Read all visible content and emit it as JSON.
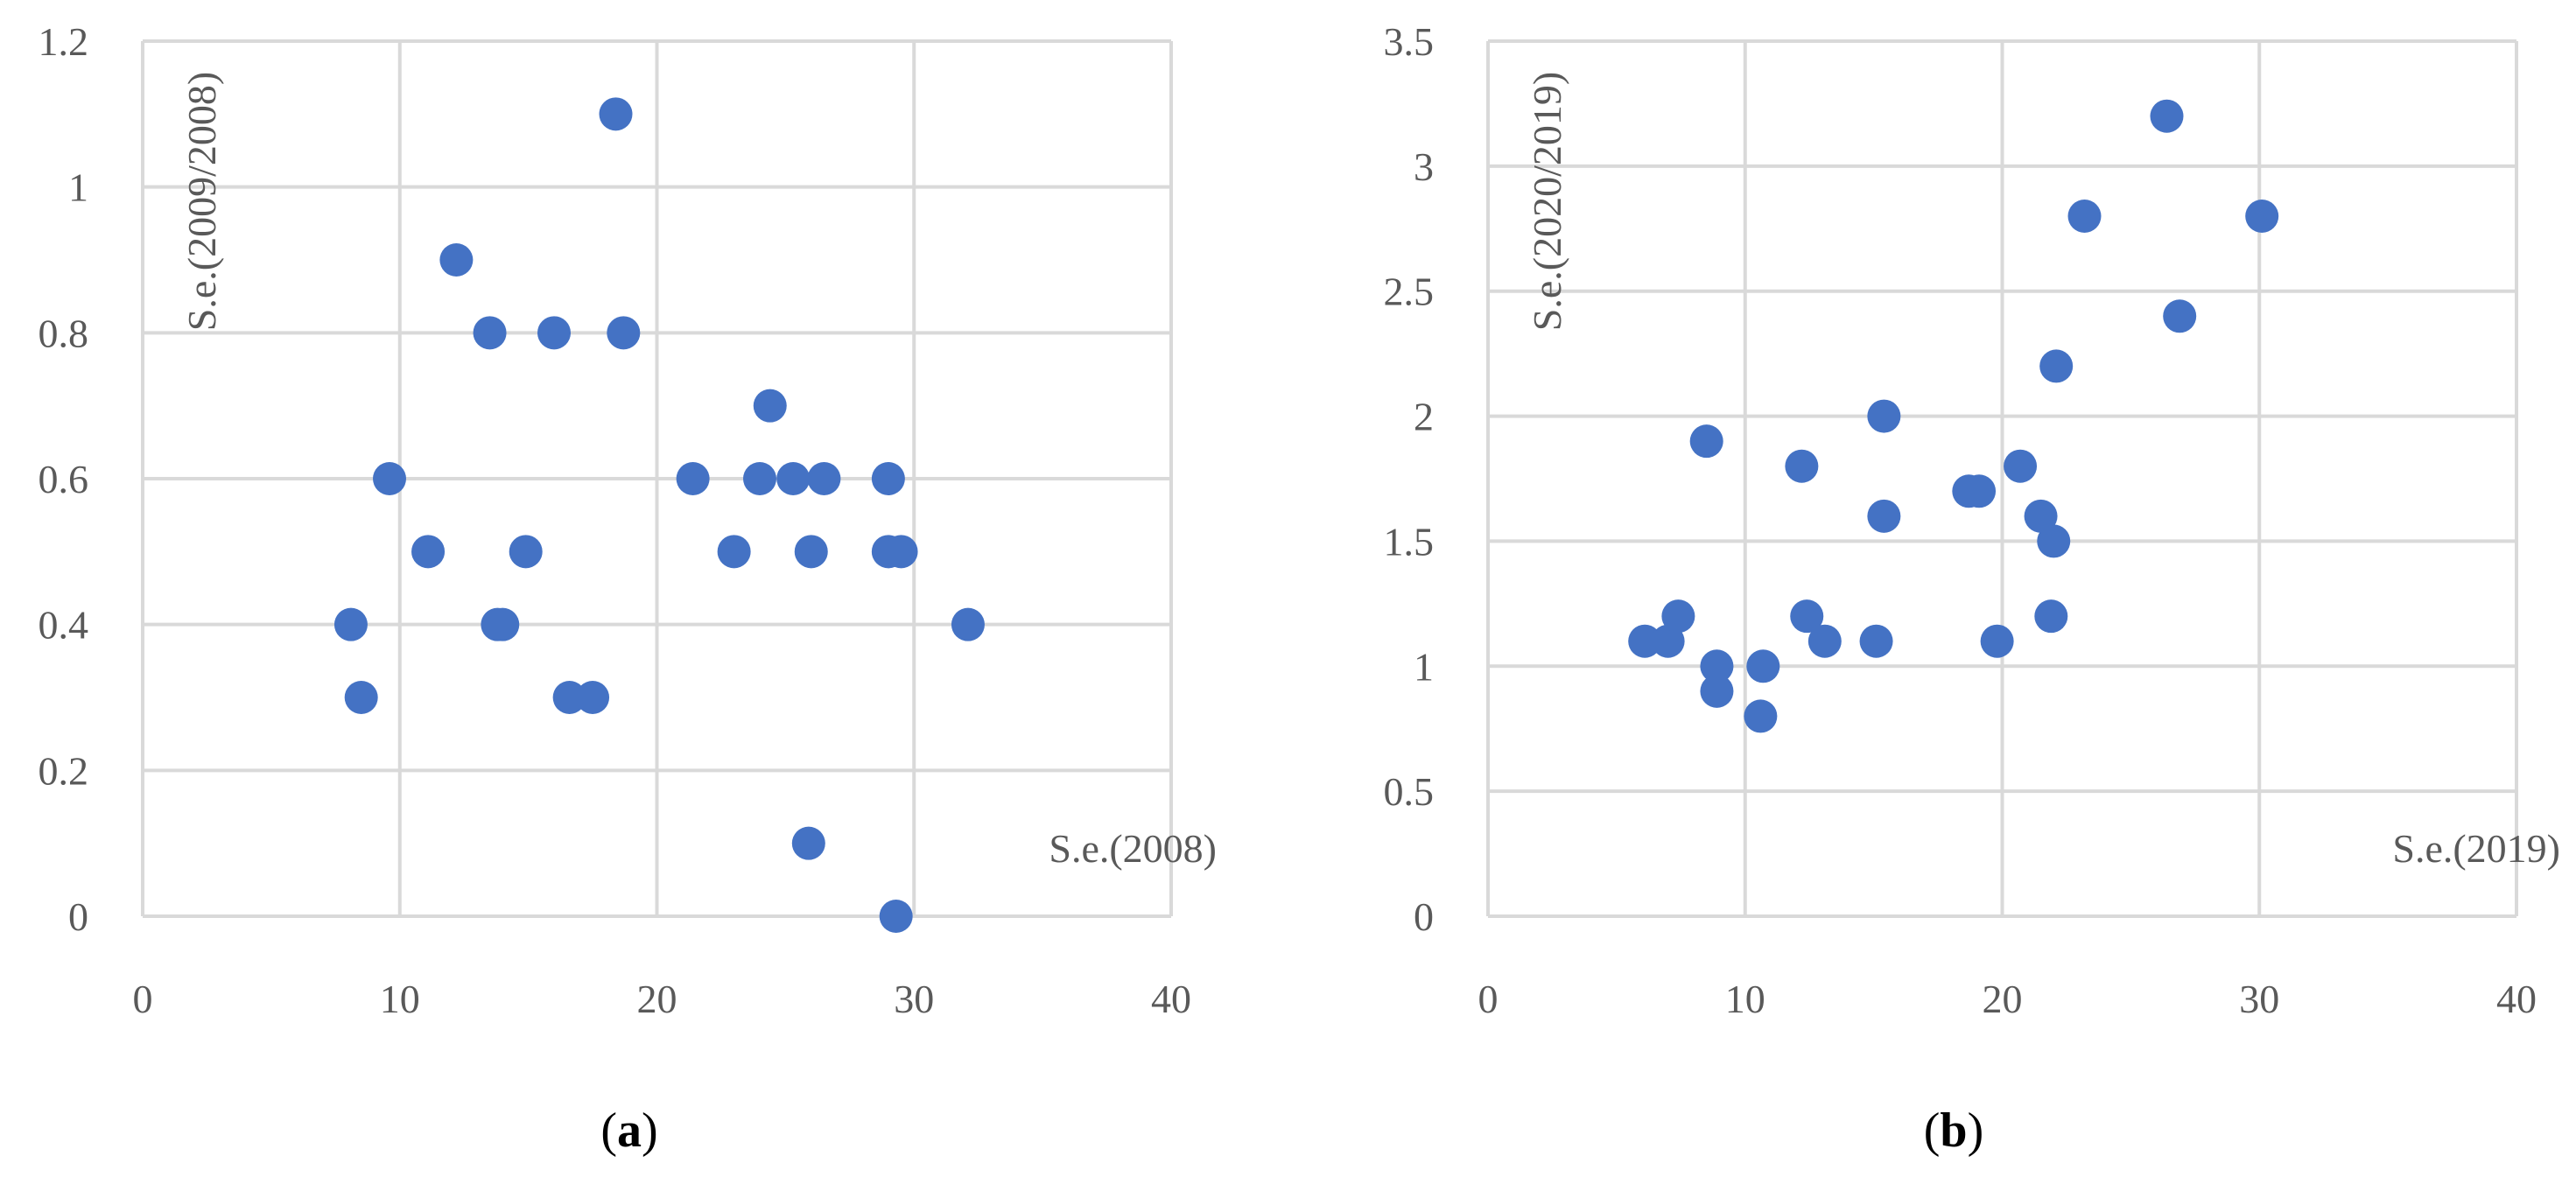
{
  "chart_data": [
    {
      "type": "scatter",
      "title": "",
      "caption_letter": "a",
      "xlabel": "S.e.(2008)",
      "ylabel": "S.e.(2009/2008)",
      "xlim": [
        0,
        40
      ],
      "ylim": [
        0,
        1.2
      ],
      "x_ticks": [
        "0",
        "10",
        "20",
        "30",
        "40"
      ],
      "y_ticks": [
        "0",
        "0.2",
        "0.4",
        "0.6",
        "0.8",
        "1",
        "1.2"
      ],
      "grid": true,
      "marker_color": "#4472c4",
      "points": [
        {
          "x": 8.1,
          "y": 0.4
        },
        {
          "x": 8.5,
          "y": 0.3
        },
        {
          "x": 9.6,
          "y": 0.6
        },
        {
          "x": 11.1,
          "y": 0.5
        },
        {
          "x": 12.2,
          "y": 0.9
        },
        {
          "x": 13.5,
          "y": 0.8
        },
        {
          "x": 13.8,
          "y": 0.4
        },
        {
          "x": 14.0,
          "y": 0.4
        },
        {
          "x": 14.9,
          "y": 0.5
        },
        {
          "x": 16.0,
          "y": 0.8
        },
        {
          "x": 16.6,
          "y": 0.3
        },
        {
          "x": 17.5,
          "y": 0.3
        },
        {
          "x": 18.4,
          "y": 1.1
        },
        {
          "x": 18.7,
          "y": 0.8
        },
        {
          "x": 21.4,
          "y": 0.6
        },
        {
          "x": 23.0,
          "y": 0.5
        },
        {
          "x": 24.0,
          "y": 0.6
        },
        {
          "x": 24.4,
          "y": 0.7
        },
        {
          "x": 25.3,
          "y": 0.6
        },
        {
          "x": 25.9,
          "y": 0.1
        },
        {
          "x": 26.0,
          "y": 0.5
        },
        {
          "x": 26.5,
          "y": 0.6
        },
        {
          "x": 29.0,
          "y": 0.6
        },
        {
          "x": 29.0,
          "y": 0.5
        },
        {
          "x": 29.5,
          "y": 0.5
        },
        {
          "x": 29.3,
          "y": 0.0
        },
        {
          "x": 32.1,
          "y": 0.4
        }
      ]
    },
    {
      "type": "scatter",
      "title": "",
      "caption_letter": "b",
      "xlabel": "S.e.(2019)",
      "ylabel": "S.e.(2020/2019)",
      "xlim": [
        0,
        40
      ],
      "ylim": [
        0,
        3.5
      ],
      "x_ticks": [
        "0",
        "10",
        "20",
        "30",
        "40"
      ],
      "y_ticks": [
        "0",
        "0.5",
        "1",
        "1.5",
        "2",
        "2.5",
        "3",
        "3.5"
      ],
      "grid": true,
      "marker_color": "#4472c4",
      "points": [
        {
          "x": 6.1,
          "y": 1.1
        },
        {
          "x": 7.0,
          "y": 1.1
        },
        {
          "x": 7.4,
          "y": 1.2
        },
        {
          "x": 8.5,
          "y": 1.9
        },
        {
          "x": 8.9,
          "y": 1.0
        },
        {
          "x": 8.9,
          "y": 0.9
        },
        {
          "x": 10.6,
          "y": 0.8
        },
        {
          "x": 10.7,
          "y": 1.0
        },
        {
          "x": 12.2,
          "y": 1.8
        },
        {
          "x": 12.4,
          "y": 1.2
        },
        {
          "x": 13.1,
          "y": 1.1
        },
        {
          "x": 15.1,
          "y": 1.1
        },
        {
          "x": 15.4,
          "y": 2.0
        },
        {
          "x": 15.4,
          "y": 1.6
        },
        {
          "x": 18.7,
          "y": 1.7
        },
        {
          "x": 19.1,
          "y": 1.7
        },
        {
          "x": 19.8,
          "y": 1.1
        },
        {
          "x": 20.7,
          "y": 1.8
        },
        {
          "x": 21.5,
          "y": 1.6
        },
        {
          "x": 21.9,
          "y": 1.2
        },
        {
          "x": 22.0,
          "y": 1.5
        },
        {
          "x": 22.1,
          "y": 2.2
        },
        {
          "x": 23.2,
          "y": 2.8
        },
        {
          "x": 26.4,
          "y": 3.2
        },
        {
          "x": 26.9,
          "y": 2.4
        },
        {
          "x": 30.1,
          "y": 2.8
        }
      ]
    }
  ]
}
